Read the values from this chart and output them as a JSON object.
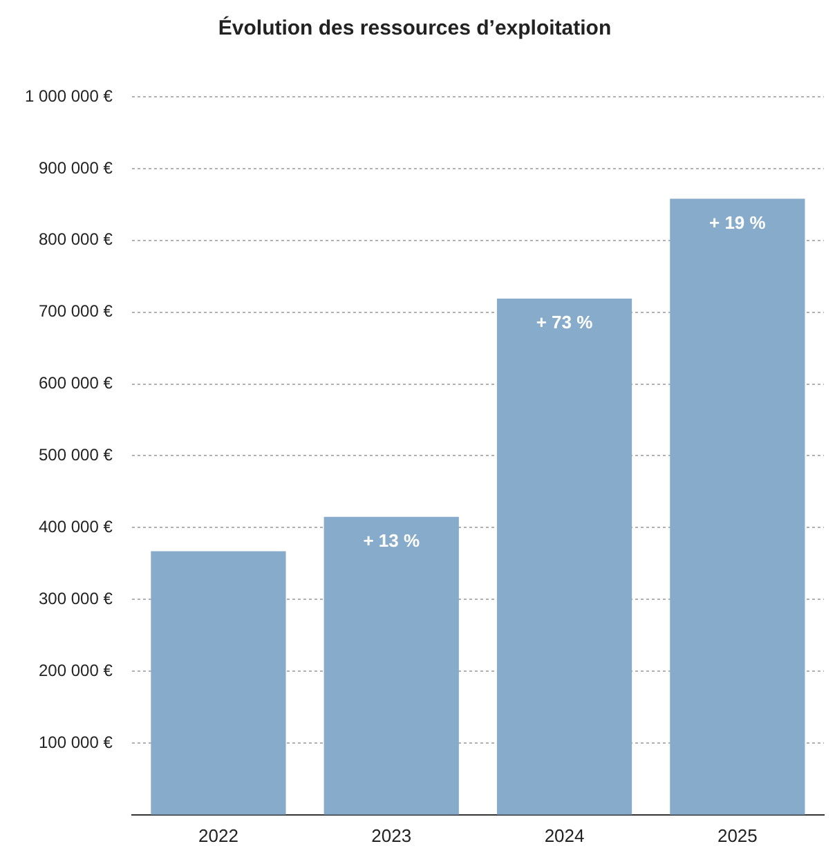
{
  "chart_data": {
    "type": "bar",
    "title": "Évolution des ressources d’exploitation",
    "categories": [
      "2022",
      "2023",
      "2024",
      "2025"
    ],
    "values": [
      367000,
      415000,
      719000,
      858000
    ],
    "color": "#87abcb",
    "annotations": [
      {
        "text": "+ 13 %",
        "x": "2023",
        "y": 415000
      },
      {
        "text": "+ 73 %",
        "x": "2024",
        "y": 719000
      },
      {
        "text": "+ 19 %",
        "x": "2025",
        "y": 858000
      }
    ],
    "ylim": [
      0,
      1000000
    ],
    "yticks": [
      {
        "value": 100000,
        "label": "100 000 €"
      },
      {
        "value": 200000,
        "label": "200 000 €"
      },
      {
        "value": 300000,
        "label": "300 000 €"
      },
      {
        "value": 400000,
        "label": "400 000 €"
      },
      {
        "value": 500000,
        "label": "500 000 €"
      },
      {
        "value": 600000,
        "label": "600 000 €"
      },
      {
        "value": 700000,
        "label": "700 000 €"
      },
      {
        "value": 800000,
        "label": "800 000 €"
      },
      {
        "value": 900000,
        "label": "900 000 €"
      },
      {
        "value": 1000000,
        "label": "1 000 000 €"
      }
    ],
    "grid": "y"
  }
}
